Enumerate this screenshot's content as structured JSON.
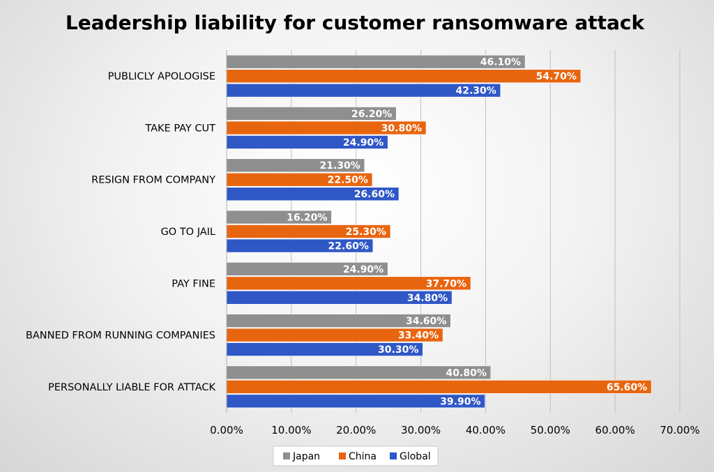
{
  "chart_data": {
    "type": "bar",
    "orientation": "horizontal",
    "title": "Leadership liability for customer ransomware attack",
    "categories": [
      "PUBLICLY APOLOGISE",
      "TAKE PAY CUT",
      "RESIGN FROM COMPANY",
      "GO TO JAIL",
      "PAY FINE",
      "BANNED FROM RUNNING COMPANIES",
      "PERSONALLY LIABLE FOR ATTACK"
    ],
    "series": [
      {
        "name": "Japan",
        "color": "#8f8f8f",
        "values": [
          46.1,
          26.2,
          21.3,
          16.2,
          24.9,
          34.6,
          40.8
        ]
      },
      {
        "name": "China",
        "color": "#e8650f",
        "values": [
          54.7,
          30.8,
          22.5,
          25.3,
          37.7,
          33.4,
          65.6
        ]
      },
      {
        "name": "Global",
        "color": "#2f57c6",
        "values": [
          42.3,
          24.9,
          26.6,
          22.6,
          34.8,
          30.3,
          39.9
        ]
      }
    ],
    "xlim": [
      0,
      70
    ],
    "xticks": [
      0,
      10,
      20,
      30,
      40,
      50,
      60,
      70
    ],
    "tick_format": "percent_2dp",
    "data_label_format": "percent_2dp",
    "grid": "vertical",
    "legend_position": "bottom"
  }
}
